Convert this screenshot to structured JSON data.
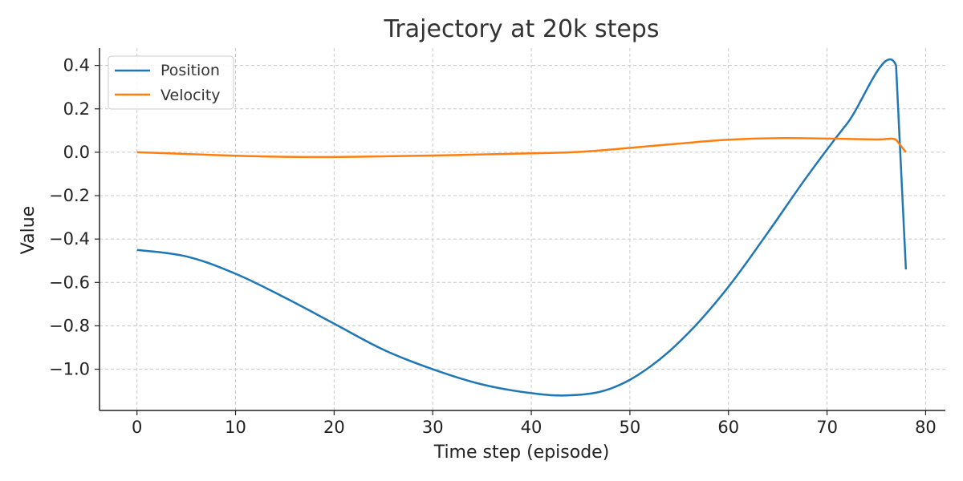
{
  "chart_data": {
    "type": "line",
    "title": "Trajectory at 20k steps",
    "xlabel": "Time step (episode)",
    "ylabel": "Value",
    "xlim": [
      -3.8,
      82
    ],
    "ylim": [
      -1.19,
      0.48
    ],
    "x_ticks": [
      0,
      10,
      20,
      30,
      40,
      50,
      60,
      70,
      80
    ],
    "x_tick_labels": [
      "0",
      "10",
      "20",
      "30",
      "40",
      "50",
      "60",
      "70",
      "80"
    ],
    "y_ticks": [
      0.4,
      0.2,
      0.0,
      -0.2,
      -0.4,
      -0.6,
      -0.8,
      -1.0
    ],
    "y_tick_labels": [
      "0.4",
      "0.2",
      "0.0",
      "−0.2",
      "−0.4",
      "−0.6",
      "−0.8",
      "−1.0"
    ],
    "grid": true,
    "legend_position": "top-left",
    "series": [
      {
        "name": "Position",
        "color": "#1f77b4",
        "x": [
          0,
          5,
          10,
          15,
          20,
          25,
          30,
          35,
          40,
          44,
          48,
          52,
          56,
          60,
          64,
          68,
          72,
          77,
          78
        ],
        "y": [
          -0.45,
          -0.48,
          -0.56,
          -0.67,
          -0.79,
          -0.91,
          -1.0,
          -1.07,
          -1.11,
          -1.12,
          -1.09,
          -0.99,
          -0.83,
          -0.62,
          -0.37,
          -0.11,
          0.13,
          0.4,
          -0.54
        ]
      },
      {
        "name": "Velocity",
        "color": "#ff7f0e",
        "x": [
          0,
          5,
          10,
          15,
          20,
          25,
          30,
          35,
          40,
          45,
          50,
          55,
          60,
          65,
          70,
          75,
          77,
          78
        ],
        "y": [
          0.0,
          -0.008,
          -0.016,
          -0.021,
          -0.022,
          -0.019,
          -0.015,
          -0.01,
          -0.005,
          0.002,
          0.02,
          0.04,
          0.058,
          0.065,
          0.063,
          0.059,
          0.058,
          0.0
        ]
      }
    ]
  }
}
